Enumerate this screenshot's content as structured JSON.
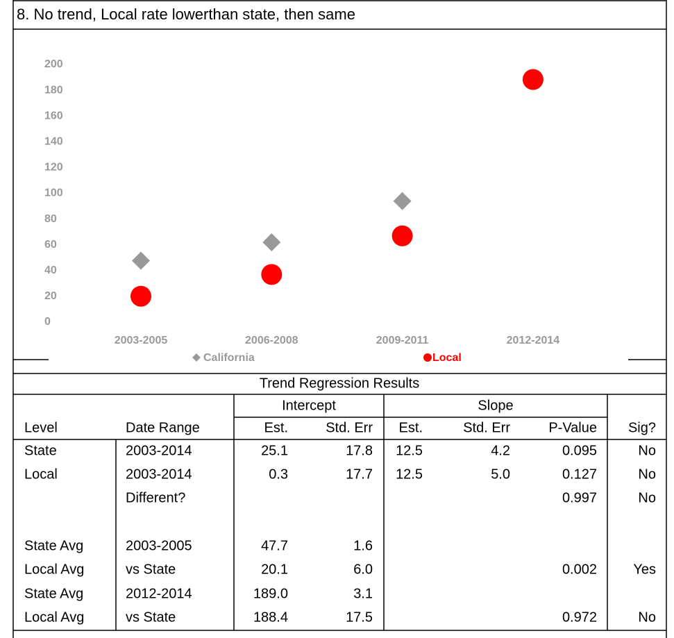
{
  "chart_data": {
    "type": "scatter",
    "title": "8. No trend, Local rate lowerthan state, then same",
    "categories": [
      "2003-2005",
      "2006-2008",
      "2009-2011",
      "2012-2014"
    ],
    "series": [
      {
        "name": "California",
        "color": "#999999",
        "marker": "diamond",
        "values": [
          47.7,
          62,
          94,
          189.0
        ]
      },
      {
        "name": "Local",
        "color": "#ff0000",
        "marker": "circle",
        "values": [
          20.1,
          37,
          67,
          188.4
        ]
      }
    ],
    "ylim": [
      0,
      200
    ],
    "yticks": [
      0,
      20,
      40,
      60,
      80,
      100,
      120,
      140,
      160,
      180,
      200
    ],
    "grid": false
  },
  "table": {
    "title": "Trend Regression Results",
    "group_headers": [
      "Intercept",
      "Slope"
    ],
    "columns": [
      "Level",
      "Date Range",
      "Est.",
      "Std. Err",
      "Est.",
      "Std. Err",
      "P-Value",
      "Sig?"
    ],
    "rows": [
      [
        "State",
        "2003-2014",
        "25.1",
        "17.8",
        "12.5",
        "4.2",
        "0.095",
        "No"
      ],
      [
        "Local",
        "2003-2014",
        "0.3",
        "17.7",
        "12.5",
        "5.0",
        "0.127",
        "No"
      ],
      [
        null,
        "Different?",
        null,
        null,
        null,
        null,
        "0.997",
        "No"
      ],
      [
        null,
        null,
        null,
        null,
        null,
        null,
        null,
        null
      ],
      [
        "State Avg",
        "2003-2005",
        "47.7",
        "1.6",
        null,
        null,
        null,
        null
      ],
      [
        "Local Avg",
        "vs State",
        "20.1",
        "6.0",
        null,
        null,
        "0.002",
        "Yes"
      ],
      [
        "State Avg",
        "2012-2014",
        "189.0",
        "3.1",
        null,
        null,
        null,
        null
      ],
      [
        "Local Avg",
        "vs State",
        "188.4",
        "17.5",
        null,
        null,
        "0.972",
        "No"
      ]
    ]
  }
}
